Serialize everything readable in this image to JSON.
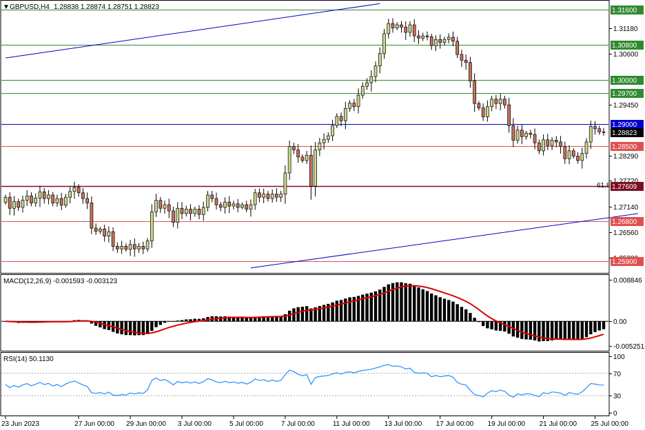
{
  "chart_data": {
    "type": "candlestick",
    "header": {
      "symbol": "GBPUSD,H4",
      "ohlc": "1.28838 1.28874 1.28751 1.28823"
    },
    "colors": {
      "bull_body": "#c8d68a",
      "bear_body": "#c8705a",
      "wick": "#000000",
      "support_resistance": "#e05050",
      "green_level": "#2e8b2e",
      "blue_level": "#0000cc",
      "fib_level": "#7a1020",
      "channel": "#0000cc",
      "macd_signal": "#e00000",
      "rsi_line": "#1e90ff"
    },
    "price_axis": {
      "ylim": [
        1.257,
        1.3175
      ],
      "ticks": [
        "1.31180",
        "1.30600",
        "1.29450",
        "1.28290",
        "1.27720",
        "1.27140",
        "1.26560",
        "1.25980"
      ]
    },
    "levels": [
      {
        "value": 1.316,
        "label": "1.31600",
        "kind": "green"
      },
      {
        "value": 1.308,
        "label": "1.30800",
        "kind": "green"
      },
      {
        "value": 1.3,
        "label": "1.30000",
        "kind": "green"
      },
      {
        "value": 1.297,
        "label": "1.29700",
        "kind": "green"
      },
      {
        "value": 1.29,
        "label": "1.29000",
        "kind": "blue"
      },
      {
        "value": 1.28823,
        "label": "1.28823",
        "kind": "current"
      },
      {
        "value": 1.285,
        "label": "1.28500",
        "kind": "red"
      },
      {
        "value": 1.27609,
        "label": "1.27609",
        "kind": "fib"
      },
      {
        "value": 1.268,
        "label": "1.26800",
        "kind": "red"
      },
      {
        "value": 1.259,
        "label": "1.25900",
        "kind": "red"
      }
    ],
    "fib_label": "61.8",
    "channel_lines": [
      {
        "p1": [
          0,
          1.305
        ],
        "p2": [
          87,
          1.3173
        ]
      },
      {
        "p1": [
          57,
          1.2575
        ],
        "p2": [
          147,
          1.2698
        ]
      }
    ],
    "x_labels": [
      {
        "label": "23 Jun 2023",
        "index": 0
      },
      {
        "label": "27 Jun 00:00",
        "index": 17
      },
      {
        "label": "29 Jun 00:00",
        "index": 29
      },
      {
        "label": "3 Jul 00:00",
        "index": 41
      },
      {
        "label": "5 Jul 00:00",
        "index": 53
      },
      {
        "label": "7 Jul 00:00",
        "index": 65
      },
      {
        "label": "11 Jul 00:00",
        "index": 77
      },
      {
        "label": "13 Jul 00:00",
        "index": 89
      },
      {
        "label": "17 Jul 00:00",
        "index": 101
      },
      {
        "label": "19 Jul 00:00",
        "index": 113
      },
      {
        "label": "21 Jul 00:00",
        "index": 125
      },
      {
        "label": "25 Jul 00:00",
        "index": 137
      }
    ],
    "closes": [
      1.2735,
      1.271,
      1.2725,
      1.2712,
      1.2728,
      1.2738,
      1.2722,
      1.2733,
      1.2747,
      1.2732,
      1.274,
      1.2722,
      1.2732,
      1.2717,
      1.2735,
      1.2748,
      1.2757,
      1.2745,
      1.2732,
      1.2722,
      1.2665,
      1.2658,
      1.2663,
      1.2647,
      1.2657,
      1.2624,
      1.2618,
      1.2624,
      1.2617,
      1.2628,
      1.2618,
      1.2624,
      1.2618,
      1.2636,
      1.2702,
      1.2728,
      1.271,
      1.2718,
      1.2704,
      1.2678,
      1.271,
      1.2698,
      1.2708,
      1.2698,
      1.2708,
      1.2696,
      1.2712,
      1.274,
      1.2732,
      1.2718,
      1.2712,
      1.2724,
      1.2715,
      1.272,
      1.2712,
      1.2718,
      1.2708,
      1.2718,
      1.2745,
      1.2735,
      1.2742,
      1.2732,
      1.2742,
      1.2735,
      1.2742,
      1.279,
      1.285,
      1.2842,
      1.2826,
      1.2818,
      1.283,
      1.276,
      1.2842,
      1.2858,
      1.2866,
      1.2874,
      1.2897,
      1.2918,
      1.2908,
      1.2936,
      1.2948,
      1.294,
      1.2966,
      1.2986,
      1.2994,
      1.3008,
      1.3032,
      1.306,
      1.3105,
      1.3128,
      1.3118,
      1.3125,
      1.312,
      1.3108,
      1.3125,
      1.31,
      1.3095,
      1.31,
      1.3098,
      1.3078,
      1.3092,
      1.3085,
      1.3092,
      1.3097,
      1.3088,
      1.3058,
      1.3045,
      1.304,
      1.2998,
      1.2947,
      1.2937,
      1.2917,
      1.294,
      1.2957,
      1.2947,
      1.2957,
      1.2944,
      1.2897,
      1.2864,
      1.2887,
      1.2872,
      1.288,
      1.2877,
      1.2858,
      1.284,
      1.2865,
      1.2852,
      1.2864,
      1.286,
      1.285,
      1.2822,
      1.284,
      1.2828,
      1.2818,
      1.2834,
      1.286,
      1.2895,
      1.289,
      1.2883,
      1.28823
    ],
    "macd": {
      "label": "MACD(12,26,9) -0.001593 -0.003123",
      "ylim": [
        -0.006,
        0.0096
      ],
      "ticks": [
        "0.008846",
        "0.00",
        "-0.005251"
      ]
    },
    "rsi": {
      "label": "RSI(14) 50.1130",
      "ylim": [
        0,
        100
      ],
      "ticks": [
        "100",
        "70",
        "30",
        "0"
      ],
      "levels": [
        70,
        30
      ]
    }
  }
}
